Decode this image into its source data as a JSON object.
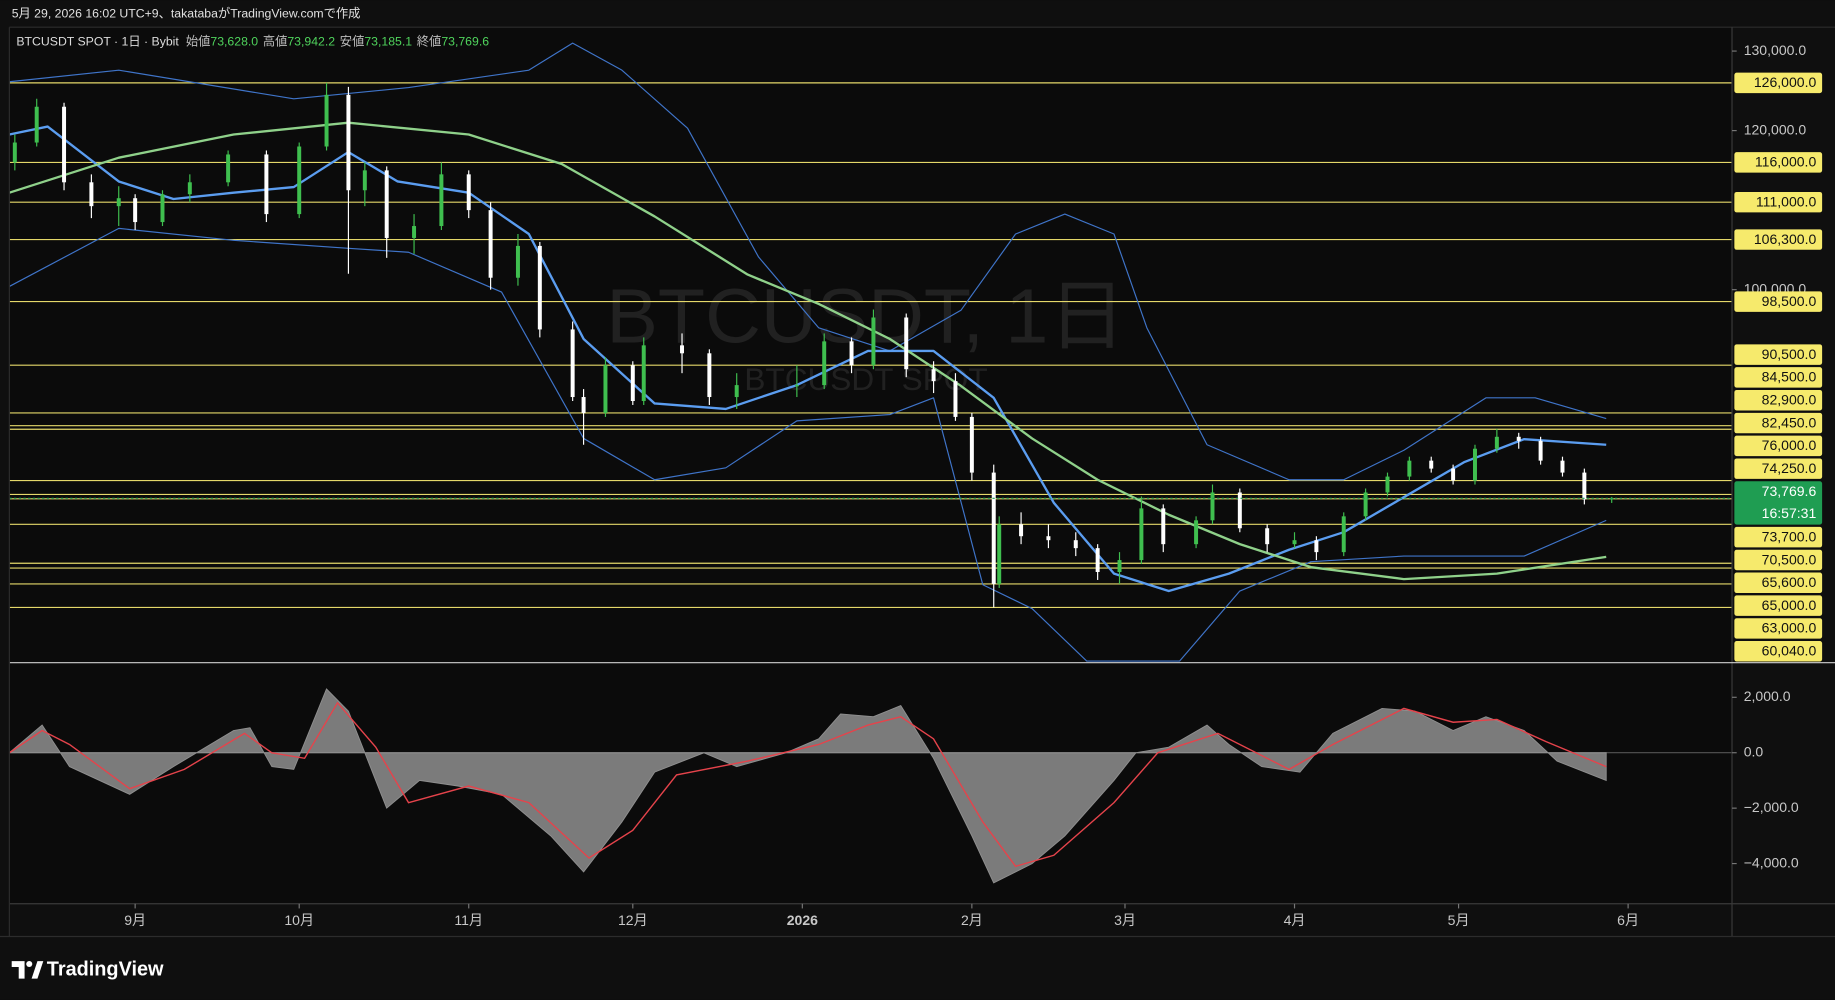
{
  "header": {
    "caption": "5月 29, 2026 16:02 UTC+9、takatabaがTradingView.comで作成"
  },
  "footer": {
    "brand": "TradingView"
  },
  "chart_data": [
    {
      "type": "candlestick",
      "legend": {
        "title": "BTCUSDT SPOT · 1日 · Bybit",
        "items": [
          {
            "label": "始値",
            "value": 73628.0,
            "value_label": "73,628.0"
          },
          {
            "label": "高値",
            "value": 73942.2,
            "value_label": "73,942.2"
          },
          {
            "label": "安値",
            "value": 73185.1,
            "value_label": "73,185.1"
          },
          {
            "label": "終値",
            "value": 73769.6,
            "value_label": "73,769.6"
          }
        ]
      },
      "watermark": {
        "title": "BTCUSDT, 1日",
        "subtitle": "BTCUSDT SPOT"
      },
      "up_color": "#3fbf4f",
      "down_color": "#ffffff",
      "xlim": [
        -23,
        292
      ],
      "xticks": [
        {
          "value": 0,
          "label": "9月"
        },
        {
          "value": 30,
          "label": "10月"
        },
        {
          "value": 61,
          "label": "11月"
        },
        {
          "value": 91,
          "label": "12月"
        },
        {
          "value": 122,
          "label": "2026"
        },
        {
          "value": 153,
          "label": "2月"
        },
        {
          "value": 181,
          "label": "3月"
        },
        {
          "value": 212,
          "label": "4月"
        },
        {
          "value": 242,
          "label": "5月"
        },
        {
          "value": 273,
          "label": "6月"
        }
      ],
      "ylim": [
        53100,
        133000
      ],
      "yticks": [
        {
          "value": 130000,
          "label": "130,000.0"
        },
        {
          "value": 120000,
          "label": "120,000.0"
        },
        {
          "value": 100000,
          "label": "100,000.0"
        }
      ],
      "x": [
        -22,
        -18,
        -13,
        -8,
        -3,
        0,
        5,
        10,
        17,
        24,
        30,
        35,
        39,
        42,
        46,
        51,
        56,
        61,
        65,
        70,
        74,
        80,
        82,
        86,
        91,
        93,
        100,
        105,
        110,
        121,
        126,
        131,
        135,
        141,
        146,
        150,
        153,
        157,
        158,
        162,
        167,
        172,
        176,
        180,
        184,
        188,
        194,
        197,
        202,
        207,
        212,
        216,
        221,
        225,
        229,
        233,
        237,
        241,
        245,
        249,
        253,
        257,
        261,
        265,
        270
      ],
      "open": [
        116000,
        118500,
        123000,
        113500,
        110500,
        111500,
        108500,
        112000,
        113500,
        117000,
        109500,
        118000,
        124500,
        112500,
        115000,
        106500,
        108000,
        114500,
        110000,
        101500,
        105500,
        95000,
        86500,
        84500,
        90500,
        86000,
        93000,
        92000,
        86500,
        88000,
        88000,
        93500,
        90500,
        96500,
        90000,
        88500,
        84000,
        77000,
        63000,
        70500,
        69000,
        68500,
        67500,
        64500,
        66000,
        72500,
        68000,
        71000,
        74500,
        70000,
        68000,
        68500,
        67000,
        71500,
        74500,
        76500,
        78500,
        77500,
        76000,
        80000,
        81500,
        81000,
        78500,
        77000,
        73628
      ],
      "high": [
        119500,
        124000,
        123500,
        114500,
        113000,
        112000,
        112500,
        114500,
        117500,
        117500,
        118500,
        126000,
        125500,
        116000,
        115500,
        109500,
        116000,
        115000,
        111000,
        107000,
        106000,
        96000,
        87500,
        91500,
        91000,
        94000,
        94500,
        92500,
        89500,
        90500,
        94500,
        94000,
        97500,
        97000,
        91000,
        89500,
        84500,
        78000,
        71500,
        72000,
        70500,
        69500,
        68000,
        67000,
        74000,
        73000,
        71500,
        75500,
        75000,
        70500,
        69500,
        69000,
        72000,
        75000,
        77000,
        79000,
        79000,
        78000,
        80500,
        82500,
        82000,
        81500,
        79000,
        77500,
        73942.2
      ],
      "low": [
        115000,
        118000,
        112500,
        109000,
        108000,
        107500,
        108000,
        111000,
        113000,
        108500,
        109000,
        117500,
        102000,
        110500,
        104000,
        104500,
        107500,
        109000,
        100000,
        100500,
        94000,
        86000,
        80500,
        84000,
        85500,
        85500,
        89500,
        85500,
        85000,
        86500,
        87500,
        89500,
        90000,
        89000,
        87000,
        83500,
        76000,
        60040,
        62500,
        68000,
        67500,
        66500,
        63500,
        63000,
        65500,
        67000,
        67500,
        70500,
        69500,
        67000,
        67500,
        66000,
        66500,
        71000,
        74000,
        76000,
        77000,
        75500,
        75500,
        79500,
        80000,
        78000,
        76500,
        73000,
        73185.1
      ],
      "close": [
        118500,
        123000,
        113500,
        110500,
        111500,
        108500,
        112000,
        113500,
        117000,
        109500,
        118000,
        124500,
        112500,
        115000,
        106500,
        108000,
        114500,
        110000,
        101500,
        105500,
        95000,
        86500,
        84500,
        90500,
        86000,
        93000,
        92000,
        86500,
        88000,
        88000,
        93500,
        90500,
        96500,
        90000,
        88500,
        84000,
        77000,
        63000,
        70500,
        69000,
        68500,
        67500,
        64500,
        66000,
        72500,
        68000,
        71000,
        74500,
        70000,
        68000,
        68500,
        67000,
        71500,
        74500,
        76500,
        78500,
        77500,
        76000,
        80000,
        81500,
        81000,
        78500,
        77000,
        73628,
        73769.6
      ],
      "overlays": [
        {
          "color": "#3f74c9",
          "width": 1,
          "x": [
            -23,
            -3,
            29,
            50,
            72,
            80,
            89,
            101,
            114,
            125,
            138,
            151,
            161,
            170,
            179,
            185,
            196,
            211,
            221,
            232,
            247,
            256,
            269
          ],
          "values": [
            126150,
            127600,
            124000,
            125400,
            127600,
            131000,
            127600,
            120300,
            104100,
            95200,
            92300,
            97400,
            107000,
            109500,
            107000,
            95200,
            80500,
            76100,
            76100,
            79800,
            86400,
            86400,
            83800
          ]
        },
        {
          "color": "#3f74c9",
          "width": 1,
          "x": [
            -23,
            -3,
            18,
            39,
            50,
            67,
            82,
            95,
            108,
            121,
            138,
            146,
            155,
            164,
            174,
            191,
            202,
            215,
            232,
            243,
            254,
            269
          ],
          "values": [
            100400,
            107700,
            106200,
            105200,
            104700,
            99700,
            81300,
            76100,
            77600,
            83500,
            84300,
            86400,
            62900,
            59900,
            53300,
            53300,
            62100,
            65800,
            66500,
            66500,
            66500,
            71000
          ]
        },
        {
          "color": "#5b9df0",
          "width": 2,
          "x": [
            -23,
            -16,
            -3,
            7,
            18,
            29,
            39,
            48,
            61,
            72,
            82,
            95,
            108,
            121,
            134,
            146,
            157,
            168,
            179,
            189,
            200,
            211,
            221,
            232,
            243,
            254,
            269
          ],
          "values": [
            119500,
            120500,
            113600,
            111400,
            112200,
            112900,
            117300,
            113600,
            112200,
            107000,
            93800,
            85700,
            85000,
            88000,
            92300,
            92300,
            86400,
            73200,
            64300,
            62100,
            64300,
            67300,
            69500,
            73900,
            78300,
            81200,
            80500
          ]
        },
        {
          "color": "#8fd18a",
          "width": 2,
          "x": [
            -23,
            -3,
            18,
            39,
            61,
            78,
            95,
            112,
            125,
            138,
            151,
            164,
            176,
            189,
            202,
            215,
            232,
            249,
            269
          ],
          "values": [
            112200,
            116600,
            119500,
            121000,
            119500,
            115800,
            109200,
            101900,
            98200,
            93800,
            87900,
            81300,
            76100,
            71700,
            68000,
            65100,
            63600,
            64300,
            66400
          ]
        }
      ],
      "level_color": "#e4d86a",
      "level_label_color": "#f6ea6c",
      "levels": [
        {
          "value": 126000,
          "label": "126,000.0"
        },
        {
          "value": 116000,
          "label": "116,000.0"
        },
        {
          "value": 111000,
          "label": "111,000.0"
        },
        {
          "value": 106300,
          "label": "106,300.0"
        },
        {
          "value": 98500,
          "label": "98,500.0"
        },
        {
          "value": 90500,
          "label": "90,500.0"
        },
        {
          "value": 84500,
          "label": "84,500.0"
        },
        {
          "value": 82900,
          "label": "82,900.0"
        },
        {
          "value": 82450,
          "label": "82,450.0"
        },
        {
          "value": 76000,
          "label": "76,000.0"
        },
        {
          "value": 74250,
          "label": "74,250.0"
        },
        {
          "value": 73700,
          "label": "73,700.0"
        },
        {
          "value": 70500,
          "label": "70,500.0"
        },
        {
          "value": 65600,
          "label": "65,600.0"
        },
        {
          "value": 65000,
          "label": "65,000.0"
        },
        {
          "value": 63000,
          "label": "63,000.0"
        },
        {
          "value": 60040,
          "label": "60,040.0"
        }
      ],
      "last_price": {
        "value": 73769.6,
        "label": "73,769.6",
        "countdown": "16:57:31",
        "color": "#1f9d52"
      }
    },
    {
      "type": "area",
      "xlim": [
        -23,
        292
      ],
      "ylim": [
        -5450,
        3250
      ],
      "yticks": [
        {
          "value": 2000,
          "label": "2,000.0"
        },
        {
          "value": 0,
          "label": "0.0"
        },
        {
          "value": -2000,
          "label": "−2,000.0"
        },
        {
          "value": -4000,
          "label": "−4,000.0"
        }
      ],
      "zero_line": true,
      "series": [
        {
          "color": "#8f8f8f",
          "type": "area",
          "x": [
            -23,
            -17,
            -12,
            -1,
            7,
            18,
            21,
            25,
            29,
            35,
            39,
            46,
            52,
            59,
            67,
            76,
            82,
            89,
            95,
            104,
            110,
            119,
            125,
            129,
            135,
            140,
            146,
            153,
            157,
            164,
            170,
            179,
            183,
            189,
            196,
            200,
            206,
            213,
            219,
            228,
            234,
            241,
            247,
            254,
            260,
            269
          ],
          "values": [
            0,
            1000,
            -500,
            -1500,
            -500,
            800,
            900,
            -500,
            -600,
            2300,
            1500,
            -2000,
            -1000,
            -1200,
            -1500,
            -3000,
            -4300,
            -2500,
            -700,
            0,
            -500,
            0,
            500,
            1400,
            1300,
            1700,
            -200,
            -3000,
            -4700,
            -4000,
            -3000,
            -1000,
            0,
            200,
            1000,
            300,
            -500,
            -700,
            700,
            1600,
            1500,
            800,
            1300,
            800,
            -300,
            -1000
          ]
        },
        {
          "color": "#e5434b",
          "type": "line",
          "x": [
            -23,
            -17,
            -12,
            -1,
            9,
            20,
            25,
            31,
            37,
            44,
            50,
            61,
            72,
            83,
            91,
            99,
            112,
            125,
            134,
            140,
            146,
            155,
            161,
            168,
            179,
            187,
            198,
            211,
            219,
            232,
            241,
            249,
            258,
            269
          ],
          "values": [
            0,
            800,
            300,
            -1300,
            -600,
            700,
            0,
            -200,
            1800,
            200,
            -1800,
            -1200,
            -1800,
            -3800,
            -2800,
            -800,
            -300,
            300,
            1000,
            1300,
            500,
            -2500,
            -4100,
            -3700,
            -1800,
            0,
            700,
            -600,
            300,
            1600,
            1100,
            1200,
            400,
            -500
          ]
        }
      ]
    }
  ]
}
